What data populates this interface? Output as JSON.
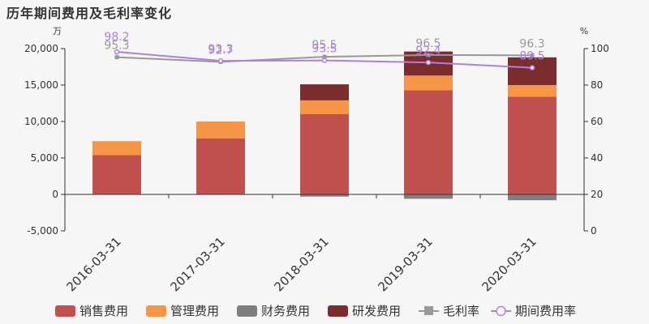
{
  "chart_data": {
    "type": "bar",
    "title": "历年期间费用及毛利率变化",
    "left_unit": "万",
    "right_unit": "%",
    "categories": [
      "2016-03-31",
      "2017-03-31",
      "2018-03-31",
      "2019-03-31",
      "2020-03-31"
    ],
    "y_left": {
      "min": -5000,
      "max": 20000,
      "ticks": [
        -5000,
        0,
        5000,
        10000,
        15000,
        20000
      ],
      "tick_labels": [
        "-5,000",
        "0",
        "5,000",
        "10,000",
        "15,000",
        "20,000"
      ]
    },
    "y_right": {
      "min": 0,
      "max": 100,
      "ticks": [
        0,
        20,
        40,
        60,
        80,
        100
      ],
      "tick_labels": [
        "0",
        "20",
        "40",
        "60",
        "80",
        "100"
      ]
    },
    "bar_series": [
      {
        "name": "销售费用",
        "color": "#c0504d",
        "values": [
          5400,
          7700,
          11000,
          14300,
          13400
        ]
      },
      {
        "name": "管理费用",
        "color": "#f79646",
        "values": [
          1900,
          2300,
          1900,
          2000,
          1600
        ]
      },
      {
        "name": "财务费用",
        "color": "#7f7f7f",
        "values": [
          -50,
          -30,
          -300,
          -600,
          -800
        ]
      },
      {
        "name": "研发费用",
        "color": "#7b2c2c",
        "values": [
          0,
          0,
          2200,
          3300,
          3800
        ]
      }
    ],
    "line_series": [
      {
        "name": "毛利率",
        "color": "#999999",
        "marker": "square",
        "values": [
          95.3,
          92.7,
          95.5,
          96.5,
          96.3
        ],
        "labels": [
          "95.3",
          "92.7",
          "95.5",
          "96.5",
          "96.3"
        ]
      },
      {
        "name": "期间费用率",
        "color": "#b07fe0",
        "marker": "circle",
        "values": [
          98.2,
          93.3,
          93.5,
          92.4,
          89.5
        ],
        "labels": [
          "98.2",
          "93.3",
          "93.5",
          "92.4",
          "89.5"
        ]
      }
    ],
    "legend_position": "bottom"
  }
}
